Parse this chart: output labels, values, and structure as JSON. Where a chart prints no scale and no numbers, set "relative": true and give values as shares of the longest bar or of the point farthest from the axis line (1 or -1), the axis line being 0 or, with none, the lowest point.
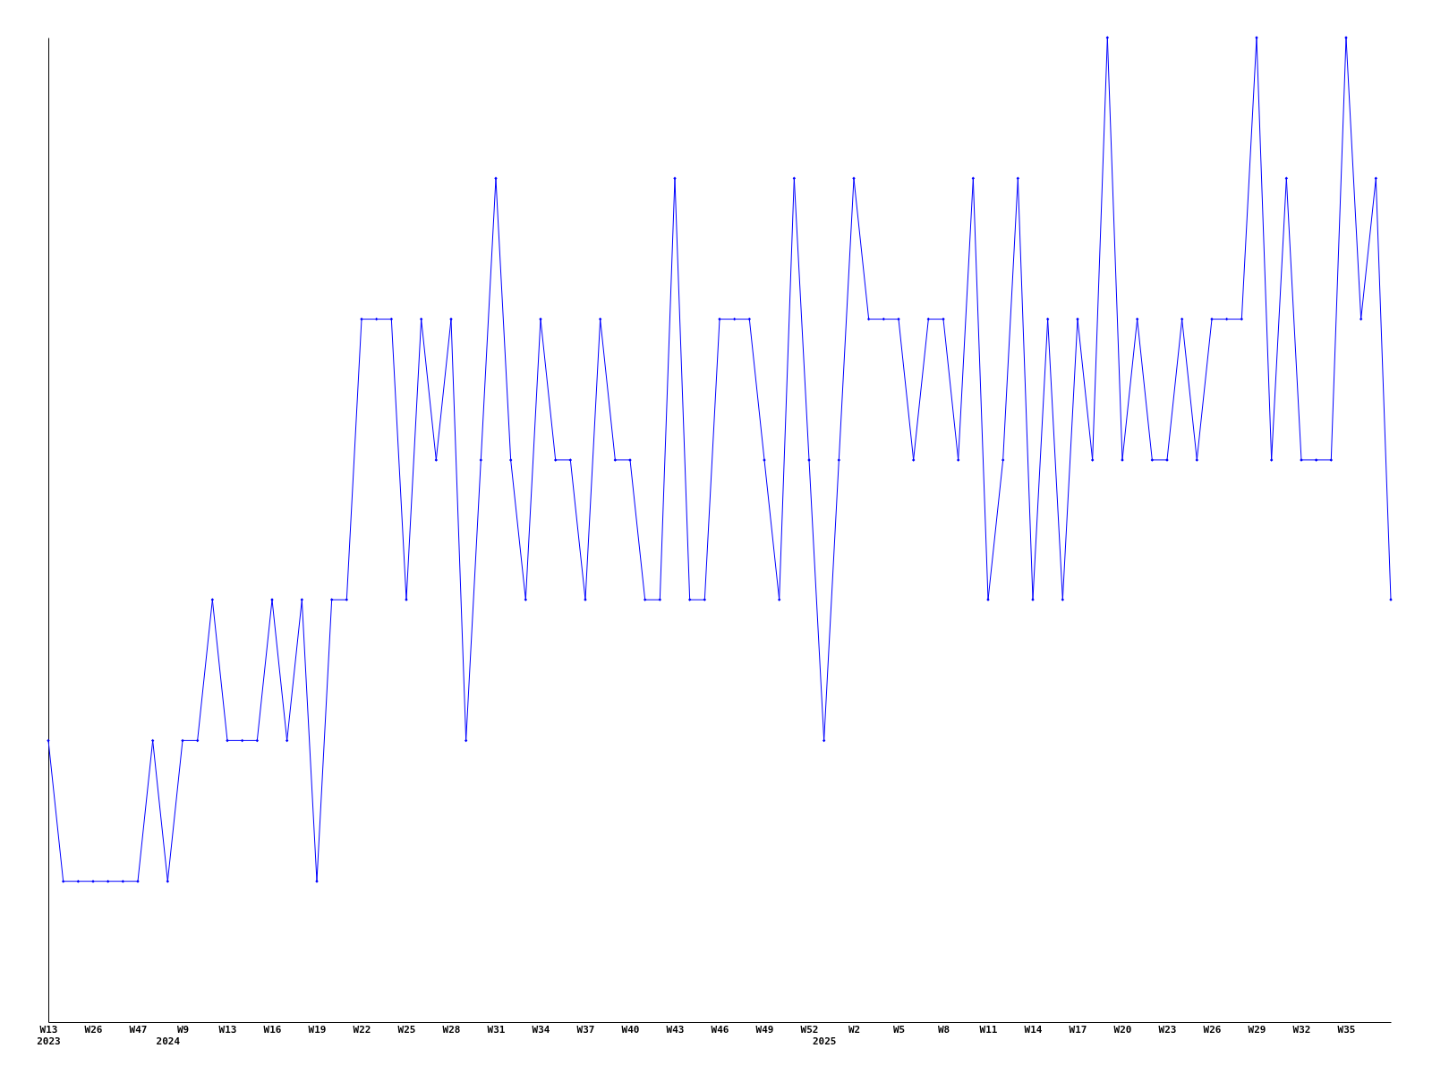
{
  "chart_data": {
    "type": "line",
    "relative": true,
    "marker": "diamond",
    "line_style": "solid",
    "grid": false,
    "categories": [
      "W13\n2023",
      null,
      null,
      "W26",
      null,
      null,
      "W47",
      null,
      "\n2024",
      "W9",
      null,
      null,
      "W13",
      null,
      null,
      "W16",
      null,
      null,
      "W19",
      null,
      null,
      "W22",
      null,
      null,
      "W25",
      null,
      null,
      "W28",
      null,
      null,
      "W31",
      null,
      null,
      "W34",
      null,
      null,
      "W37",
      null,
      null,
      "W40",
      null,
      null,
      "W43",
      null,
      null,
      "W46",
      null,
      null,
      "W49",
      null,
      null,
      "W52",
      "\n2025",
      null,
      "W2",
      null,
      null,
      "W5",
      null,
      null,
      "W8",
      null,
      null,
      "W11",
      null,
      null,
      "W14",
      null,
      null,
      "W17",
      null,
      null,
      "W20",
      null,
      null,
      "W23",
      null,
      null,
      "W26",
      null,
      null,
      "W29",
      null,
      null,
      "W32",
      null,
      null,
      "W35",
      null,
      null,
      null
    ],
    "series": [
      {
        "color": "#0000ff",
        "values": [
          0.286,
          0.143,
          0.143,
          0.143,
          0.143,
          0.143,
          0.143,
          0.286,
          0.143,
          0.286,
          0.286,
          0.429,
          0.286,
          0.286,
          0.286,
          0.429,
          0.286,
          0.429,
          0.143,
          0.429,
          0.429,
          0.714,
          0.714,
          0.714,
          0.429,
          0.714,
          0.571,
          0.714,
          0.286,
          0.571,
          0.857,
          0.571,
          0.429,
          0.714,
          0.571,
          0.571,
          0.429,
          0.714,
          0.571,
          0.571,
          0.429,
          0.429,
          0.857,
          0.429,
          0.429,
          0.714,
          0.714,
          0.714,
          0.571,
          0.429,
          0.857,
          0.571,
          0.286,
          0.571,
          0.857,
          0.714,
          0.714,
          0.714,
          0.571,
          0.714,
          0.714,
          0.571,
          0.857,
          0.429,
          0.571,
          0.857,
          0.429,
          0.714,
          0.429,
          0.714,
          0.571,
          1,
          0.571,
          0.714,
          0.571,
          0.571,
          0.714,
          0.571,
          0.714,
          0.714,
          0.714,
          1,
          0.571,
          0.857,
          0.571,
          0.571,
          0.571,
          1,
          0.714,
          0.857,
          0.429
        ]
      }
    ]
  }
}
